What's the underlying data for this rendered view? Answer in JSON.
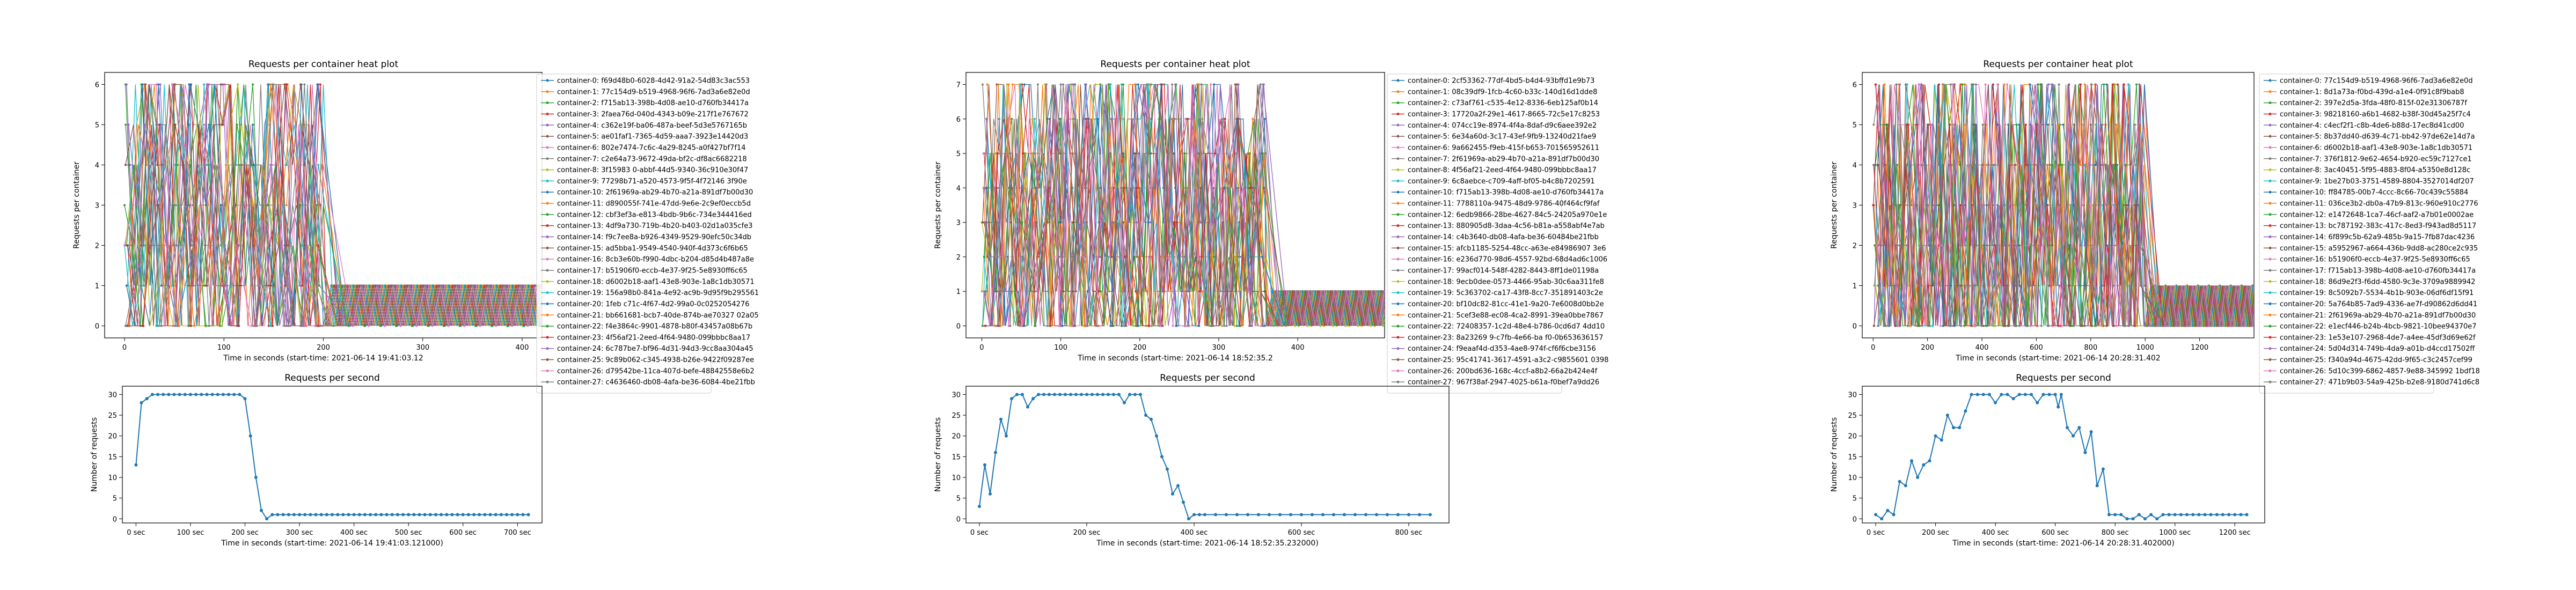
{
  "chart_data": [
    {
      "type": "line",
      "title": "Requests per container heat plot",
      "xlabel": "Time in seconds (start-time: 2021-06-14 19:41:03.12",
      "ylabel": "Requests per container",
      "xlim": [
        -20,
        420
      ],
      "ylim": [
        -0.3,
        6.3
      ],
      "xticks": [
        0,
        100,
        200,
        300,
        400
      ],
      "yticks": [
        0,
        1,
        2,
        3,
        4,
        5,
        6
      ],
      "legend_position": "right",
      "active_until": 200,
      "max_value": 6,
      "series_names": [
        "container-0: f69d48b0-6028-4d42-91a2-54d83c3ac553",
        "container-1: 77c154d9-b519-4968-96f6-7ad3a6e82e0d",
        "container-2: f715ab13-398b-4d08-ae10-d760fb34417a",
        "container-3: 2faea76d-040d-4343-b09e-217f1e767672",
        "container-4: c362e19f-ba06-487a-beef-5d3e5767165b",
        "container-5: ae01faf1-7365-4d59-aaa7-3923e14420d3",
        "container-6: 802e7474-7c6c-4a29-8245-a0f427bf7f14",
        "container-7: c2e64a73-9672-49da-bf2c-df8ac6682218",
        "container-8: 3f15983 0-abbf-44d5-9340-36c910e30f47",
        "container-9: 77298b71-a520-4573-9f5f-4f72146 3f90e",
        "container-10: 2f61969a-ab29-4b70-a21a-891df7b00d30",
        "container-11: d890055f-741e-47dd-9e6e-2c9ef0eccb5d",
        "container-12: cbf3ef3a-e813-4bdb-9b6c-734e344416ed",
        "container-13: 4df9a730-719b-4b20-b403-02d1a035cfe3",
        "container-14: f9c7ee8a-b926-4349-9529-90efc50c34db",
        "container-15: ad5bba1-9549-4540-940f-4d373c6f6b65",
        "container-16: 8cb3e60b-f990-4dbc-b204-d85d4b487a8e",
        "container-17: b51906f0-eccb-4e37-9f25-5e8930ff6c65",
        "container-18: d6002b18-aaf1-43e8-903e-1a8c1db30571",
        "container-19: 156a98b0-841a-4e92-ac9b-9d95f9b295561",
        "container-20: 1feb c71c-4f67-4d2-99a0-0c0252054276",
        "container-21: bb661681-bcb7-40de-874b-ae70327 02a05",
        "container-22: f4e3864c-9901-4878-b80f-43457a08b67b",
        "container-23: 4f56af21-2eed-4f64-9480-099bbbc8aa17",
        "container-24: 6c787be7-bf96-4d31-94d3-9cc8aa304a45",
        "container-25: 9c89b062-c345-4938-b26e-9422f09287ee",
        "container-26: d79542be-11ca-407d-befe-48842558e6b2",
        "container-27: c4636460-db08-4afa-be36-6084-4be21fbb"
      ]
    },
    {
      "type": "line",
      "title": "Requests per second",
      "xlabel": "Time in seconds (start-time: 2021-06-14 19:41:03.121000)",
      "ylabel": "Number of requests",
      "xlim": [
        -25,
        745
      ],
      "ylim": [
        -1,
        32
      ],
      "xticks": [
        0,
        100,
        200,
        300,
        400,
        500,
        600,
        700
      ],
      "xtick_labels": [
        "0 sec",
        "100 sec",
        "200 sec",
        "300 sec",
        "400 sec",
        "500 sec",
        "600 sec",
        "700 sec"
      ],
      "yticks": [
        0,
        5,
        10,
        15,
        20,
        25,
        30
      ],
      "x": [
        0,
        10,
        20,
        30,
        40,
        50,
        60,
        70,
        80,
        90,
        100,
        110,
        120,
        130,
        140,
        150,
        160,
        170,
        180,
        190,
        200,
        210,
        220,
        230,
        240,
        250,
        260,
        270,
        280,
        290,
        300,
        310,
        320,
        330,
        340,
        350,
        360,
        370,
        380,
        390,
        400,
        410,
        420,
        430,
        440,
        450,
        460,
        470,
        480,
        490,
        500,
        510,
        520,
        530,
        540,
        550,
        560,
        570,
        580,
        590,
        600,
        610,
        620,
        630,
        640,
        650,
        660,
        670,
        680,
        690,
        700,
        710,
        720
      ],
      "y": [
        13,
        28,
        29,
        30,
        30,
        30,
        30,
        30,
        30,
        30,
        30,
        30,
        30,
        30,
        30,
        30,
        30,
        30,
        30,
        30,
        29,
        20,
        10,
        2,
        0,
        1,
        1,
        1,
        1,
        1,
        1,
        1,
        1,
        1,
        1,
        1,
        1,
        1,
        1,
        1,
        1,
        1,
        1,
        1,
        1,
        1,
        1,
        1,
        1,
        1,
        1,
        1,
        1,
        1,
        1,
        1,
        1,
        1,
        1,
        1,
        1,
        1,
        1,
        1,
        1,
        1,
        1,
        1,
        1,
        1,
        1,
        1,
        1
      ],
      "color": "#1f77b4"
    },
    {
      "type": "line",
      "title": "Requests per container heat plot",
      "xlabel": "Time in seconds (start-time: 2021-06-14 18:52:35.2",
      "ylabel": "Requests per container",
      "xlim": [
        -20,
        510
      ],
      "ylim": [
        -0.35,
        7.35
      ],
      "xticks": [
        0,
        100,
        200,
        300,
        400
      ],
      "yticks": [
        0,
        1,
        2,
        3,
        4,
        5,
        6,
        7
      ],
      "legend_position": "right",
      "active_until": 360,
      "max_value": 7,
      "series_names": [
        "container-0: 2cf53362-77df-4bd5-b4d4-93bffd1e9b73",
        "container-1: 08c39df9-1fcb-4c60-b33c-140d16d1dde8",
        "container-2: c73af761-c535-4e12-8336-6eb125af0b14",
        "container-3: 17720a2f-29e1-4617-8665-72c5e17c8253",
        "container-4: 074cc19e-8974-4f4a-8daf-d9c6aee392e2",
        "container-5: 6e34a60d-3c17-43ef-9fb9-13240d21fae9",
        "container-6: 9a662455-f9eb-415f-b653-701565952611",
        "container-7: 2f61969a-ab29-4b70-a21a-891df7b00d30",
        "container-8: 4f56af21-2eed-4f64-9480-099bbbc8aa17",
        "container-9: 6c8aebce-c709-4aff-bf05-b4c8b7202591",
        "container-10: f715ab13-398b-4d08-ae10-d760fb34417a",
        "container-11: 7788110a-9475-48d9-9786-40f464cf9faf",
        "container-12: 6edb9866-28be-4627-84c5-24205a970e1e",
        "container-13: 880905d8-3daa-4c56-b81a-a558abf4e7ab",
        "container-14: c4b3640-db08-4afa-be36-60484be21fbb",
        "container-15: afcb1185-5254-48cc-a63e-e84986907 3e6",
        "container-16: e236d770-98d6-4557-92bd-68d4ad6c1006",
        "container-17: 99acf014-548f-4282-8443-8ff1de01198a",
        "container-18: 9ecb0dee-0573-4466-95ab-30c6aa311fe8",
        "container-19: 5c363702-ca17-43f8-8cc7-351891403c2e",
        "container-20: bf10dc82-81cc-41e1-9a20-7e6008d0bb2e",
        "container-21: 5cef3e88-ec08-4ca2-8991-39ea0bbe7867",
        "container-22: 72408357-1c2d-48e4-b786-0cd6d7 4dd10",
        "container-23: 8a23269 9-c7fb-4e66-ba f0-0b653636157",
        "container-24: f9eaaf4d-d353-4ae8-974f-cf6f6cbe3156",
        "container-25: 95c41741-3617-4591-a3c2-c9855601 0398",
        "container-26: 200bd636-168c-4ccf-a8b2-66a2b424e4f",
        "container-27: 967f38af-2947-4025-b61a-f0bef7a9dd26"
      ]
    },
    {
      "type": "line",
      "title": "Requests per second",
      "xlabel": "Time in seconds (start-time: 2021-06-14 18:52:35.232000)",
      "ylabel": "Number of requests",
      "xlim": [
        -25,
        875
      ],
      "ylim": [
        -1,
        32
      ],
      "xticks": [
        0,
        200,
        400,
        600,
        800
      ],
      "xtick_labels": [
        "0 sec",
        "200 sec",
        "400 sec",
        "600 sec",
        "800 sec"
      ],
      "yticks": [
        0,
        5,
        10,
        15,
        20,
        25,
        30
      ],
      "x": [
        0,
        10,
        20,
        30,
        40,
        50,
        60,
        70,
        80,
        90,
        100,
        110,
        120,
        130,
        140,
        150,
        160,
        170,
        180,
        190,
        200,
        210,
        220,
        230,
        240,
        250,
        260,
        270,
        280,
        290,
        300,
        310,
        320,
        330,
        340,
        350,
        360,
        370,
        380,
        390,
        400,
        410,
        420,
        440,
        460,
        480,
        500,
        520,
        540,
        560,
        580,
        600,
        620,
        640,
        660,
        680,
        700,
        720,
        740,
        760,
        780,
        800,
        820,
        840
      ],
      "y": [
        3,
        13,
        6,
        16,
        24,
        20,
        29,
        30,
        30,
        27,
        29,
        30,
        30,
        30,
        30,
        30,
        30,
        30,
        30,
        30,
        30,
        30,
        30,
        30,
        30,
        30,
        30,
        28,
        30,
        30,
        30,
        25,
        24,
        20,
        15,
        12,
        6,
        8,
        4,
        0,
        1,
        1,
        1,
        1,
        1,
        1,
        1,
        1,
        1,
        1,
        1,
        1,
        1,
        1,
        1,
        1,
        1,
        1,
        1,
        1,
        1,
        1,
        1,
        1
      ],
      "color": "#1f77b4"
    },
    {
      "type": "line",
      "title": "Requests per container heat plot",
      "xlabel": "Time in seconds (start-time: 2021-06-14 20:28:31.402",
      "ylabel": "Requests per container",
      "xlim": [
        -40,
        1400
      ],
      "ylim": [
        -0.3,
        6.3
      ],
      "xticks": [
        0,
        200,
        400,
        600,
        800,
        1000,
        1200
      ],
      "yticks": [
        0,
        1,
        2,
        3,
        4,
        5,
        6
      ],
      "legend_position": "right",
      "active_until": 1000,
      "max_value": 6,
      "series_names": [
        "container-0: 77c154d9-b519-4968-96f6-7ad3a6e82e0d",
        "container-1: 8d1a73a-f0bd-439d-a1e4-0f91c8f9bab8",
        "container-2: 397e2d5a-3fda-48f0-815f-02e31306787f",
        "container-3: 98218160-a6b1-4682-b38f-30d45a25f7c4",
        "container-4: c4ecf2f1-c8b-4de6-b88d-17ec8d41cd00",
        "container-5: 8b37dd40-d639-4c71-bb42-97de62e14d7a",
        "container-6: d6002b18-aaf1-43e8-903e-1a8c1db30571",
        "container-7: 376f1812-9e62-4654-b920-ec59c7127ce1",
        "container-8: 3ac40451-5f95-4883-8f04-a5350e8d128c",
        "container-9: 1be27b03-3751-4589-8804-3527014df207",
        "container-10: ff84785-00b7-4ccc-8c66-70c439c55884",
        "container-11: 036ce3b2-db0a-47b9-813c-960e910c2776",
        "container-12: e1472648-1ca7-46cf-aaf2-a7b01e0002ae",
        "container-13: bc787192-383c-417c-8ed3-f943ad8d5117",
        "container-14: 6f899c5b-62a9-485b-9a15-7fb87dac4236",
        "container-15: a5952967-a664-436b-9dd8-ac280ce2c935",
        "container-16: b51906f0-eccb-4e37-9f25-5e8930ff6c65",
        "container-17: f715ab13-398b-4d08-ae10-d760fb34417a",
        "container-18: 86d9e2f3-f6dd-4580-9c3e-3709a9889942",
        "container-19: 8c5092b7-5534-4b1b-903e-06df6df15f91",
        "container-20: 5a764b85-7ad9-4336-ae7f-d90862d6dd41",
        "container-21: 2f61969a-ab29-4b70-a21a-891df7b00d30",
        "container-22: e1ecf446-b24b-4bcb-9821-10bee94370e7",
        "container-23: 1e53e107-2968-4de7-a4ee-45df3d69e62f",
        "container-24: 5d04d314-749b-4da9-a01b-d4ccd17502ff",
        "container-25: f340a94d-4675-42dd-9f65-c3c2457cef99",
        "container-26: 5d10c399-6862-4857-9e88-345992 1bdf18",
        "container-27: 471b9b03-54a9-425b-b2e8-9180d741d6c8"
      ]
    },
    {
      "type": "line",
      "title": "Requests per second",
      "xlabel": "Time in seconds (start-time: 2021-06-14 20:28:31.402000)",
      "ylabel": "Number of requests",
      "xlim": [
        -45,
        1300
      ],
      "ylim": [
        -1,
        32
      ],
      "xticks": [
        0,
        200,
        400,
        600,
        800,
        1000,
        1200
      ],
      "xtick_labels": [
        "0 sec",
        "200 sec",
        "400 sec",
        "600 sec",
        "800 sec",
        "1000 sec",
        "1200 sec"
      ],
      "yticks": [
        0,
        5,
        10,
        15,
        20,
        25,
        30
      ],
      "x": [
        0,
        20,
        40,
        60,
        80,
        100,
        120,
        140,
        160,
        180,
        200,
        220,
        240,
        260,
        280,
        300,
        320,
        340,
        360,
        380,
        400,
        420,
        440,
        460,
        480,
        500,
        520,
        540,
        560,
        580,
        600,
        610,
        620,
        640,
        660,
        680,
        700,
        720,
        740,
        760,
        780,
        800,
        820,
        840,
        860,
        880,
        900,
        920,
        940,
        960,
        980,
        1000,
        1020,
        1040,
        1060,
        1080,
        1100,
        1120,
        1140,
        1160,
        1180,
        1200,
        1220,
        1240
      ],
      "y": [
        1,
        0,
        2,
        1,
        9,
        8,
        14,
        10,
        13,
        14,
        20,
        19,
        25,
        22,
        22,
        26,
        30,
        30,
        30,
        30,
        28,
        30,
        30,
        29,
        30,
        30,
        30,
        28,
        30,
        30,
        30,
        27,
        30,
        22,
        20,
        22,
        16,
        21,
        8,
        12,
        1,
        1,
        1,
        0,
        0,
        1,
        0,
        1,
        0,
        1,
        1,
        1,
        1,
        1,
        1,
        1,
        1,
        1,
        1,
        1,
        1,
        1,
        1,
        1
      ],
      "color": "#1f77b4"
    }
  ]
}
